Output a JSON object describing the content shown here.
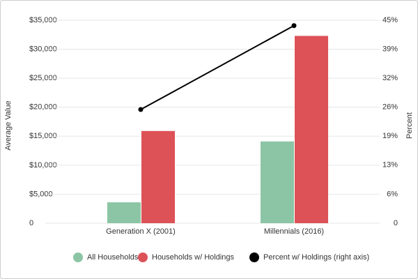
{
  "chart_data": {
    "type": "bar",
    "categories": [
      "Generation X (2001)",
      "Millennials (2016)"
    ],
    "series": [
      {
        "name": "All Households",
        "color": "#8cc5a5",
        "values": [
          3600,
          14100
        ]
      },
      {
        "name": "Households w/ Holdings",
        "color": "#dd5257",
        "values": [
          15900,
          32300
        ]
      },
      {
        "name": "Percent w/ Holdings (right axis)",
        "color": "#000000",
        "type": "line",
        "axis": "y2",
        "values": [
          25.2,
          43.8
        ]
      }
    ],
    "y_label": "Average Value",
    "y2_label": "Percent",
    "ylim": [
      0,
      35000
    ],
    "yticks": [
      0,
      {
        "value": 5000,
        "label": "$5,000"
      },
      {
        "value": 10000,
        "label": "$10,000"
      },
      {
        "value": 15000,
        "label": "$15,000"
      },
      {
        "value": 20000,
        "label": "$20,000"
      },
      {
        "value": 25000,
        "label": "$25,000"
      },
      {
        "value": 30000,
        "label": "$30,000"
      },
      {
        "value": 35000,
        "label": "$35,000"
      }
    ],
    "y2lim": [
      0,
      45
    ],
    "y2ticks": [
      0,
      {
        "value": 6.43,
        "label": "6%"
      },
      {
        "value": 12.86,
        "label": "13%"
      },
      {
        "value": 19.29,
        "label": "19%"
      },
      {
        "value": 25.71,
        "label": "26%"
      },
      {
        "value": 32.14,
        "label": "32%"
      },
      {
        "value": 38.57,
        "label": "39%"
      },
      {
        "value": 45,
        "label": "45%"
      }
    ],
    "legend": "bottom"
  }
}
